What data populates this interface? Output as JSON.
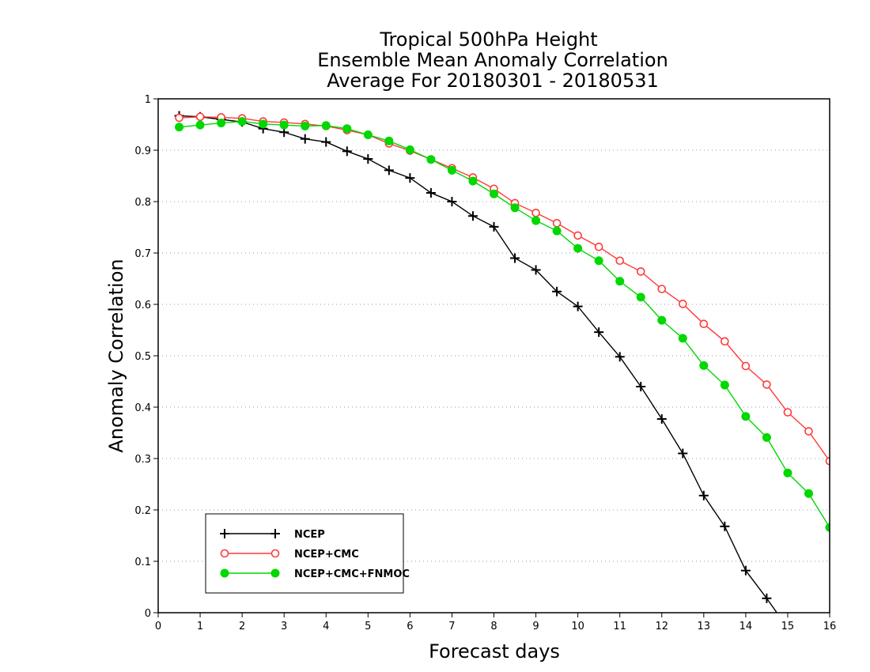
{
  "chart_data": {
    "type": "line",
    "title": [
      "Tropical 500hPa Height",
      "Ensemble Mean Anomaly Correlation",
      "Average For 20180301 - 20180531"
    ],
    "xlabel": "Forecast days",
    "ylabel": "Anomaly Correlation",
    "xlim": [
      0,
      16
    ],
    "ylim": [
      0,
      1
    ],
    "xticks": [
      "0",
      "1",
      "2",
      "3",
      "4",
      "5",
      "6",
      "7",
      "8",
      "9",
      "10",
      "11",
      "12",
      "13",
      "14",
      "15",
      "16"
    ],
    "yticks": [
      "0",
      "0.1",
      "0.2",
      "0.3",
      "0.4",
      "0.5",
      "0.6",
      "0.7",
      "0.8",
      "0.9",
      "1"
    ],
    "grid": "horizontal dotted",
    "legend_position": "bottom-left",
    "x": [
      0.5,
      1,
      1.5,
      2,
      2.5,
      3,
      3.5,
      4,
      4.5,
      5,
      5.5,
      6,
      6.5,
      7,
      7.5,
      8,
      8.5,
      9,
      9.5,
      10,
      10.5,
      11,
      11.5,
      12,
      12.5,
      13,
      13.5,
      14,
      14.5,
      15,
      15.5,
      16
    ],
    "series": [
      {
        "name": "NCEP",
        "color": "#000000",
        "marker": "plus",
        "values": [
          0.967,
          0.965,
          0.96,
          0.955,
          0.942,
          0.935,
          0.922,
          0.916,
          0.898,
          0.883,
          0.861,
          0.846,
          0.817,
          0.8,
          0.772,
          0.751,
          0.69,
          0.667,
          0.625,
          0.596,
          0.546,
          0.498,
          0.44,
          0.377,
          0.31,
          0.228,
          0.168,
          0.082,
          0.028,
          -0.03,
          null,
          null
        ]
      },
      {
        "name": "NCEP+CMC",
        "color": "#ff3a3a",
        "marker": "open-circle",
        "values": [
          0.963,
          0.965,
          0.964,
          0.962,
          0.956,
          0.954,
          0.951,
          0.947,
          0.939,
          0.93,
          0.913,
          0.899,
          0.882,
          0.865,
          0.847,
          0.825,
          0.797,
          0.778,
          0.758,
          0.734,
          0.712,
          0.685,
          0.664,
          0.63,
          0.601,
          0.562,
          0.528,
          0.48,
          0.444,
          0.39,
          0.353,
          0.295
        ]
      },
      {
        "name": "NCEP+CMC+FNMOC",
        "color": "#00d800",
        "marker": "filled-circle",
        "values": [
          0.945,
          0.949,
          0.953,
          0.956,
          0.951,
          0.949,
          0.947,
          0.948,
          0.942,
          0.93,
          0.918,
          0.901,
          0.882,
          0.861,
          0.84,
          0.815,
          0.788,
          0.763,
          0.743,
          0.709,
          0.685,
          0.645,
          0.614,
          0.569,
          0.534,
          0.481,
          0.443,
          0.382,
          0.341,
          0.272,
          0.232,
          0.166
        ]
      }
    ]
  }
}
